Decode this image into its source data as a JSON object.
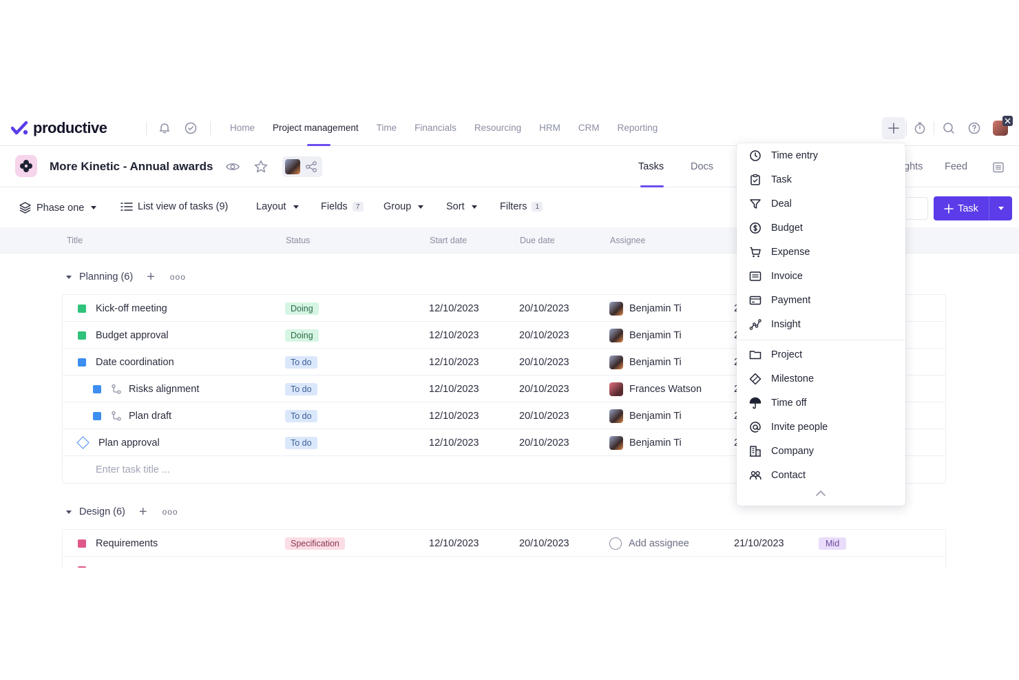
{
  "brand": {
    "name": "productive"
  },
  "nav": {
    "links": [
      {
        "label": "Home",
        "active": false
      },
      {
        "label": "Project management",
        "active": true
      },
      {
        "label": "Time",
        "active": false
      },
      {
        "label": "Financials",
        "active": false
      },
      {
        "label": "Resourcing",
        "active": false
      },
      {
        "label": "HRM",
        "active": false
      },
      {
        "label": "CRM",
        "active": false
      },
      {
        "label": "Reporting",
        "active": false
      }
    ],
    "icons": [
      "bell-icon",
      "check-circle-icon",
      "plus-icon",
      "timer-icon",
      "search-icon",
      "help-icon"
    ]
  },
  "project": {
    "title": "More Kinetic - Annual awards",
    "tabs": [
      {
        "label": "Tasks",
        "active": true
      },
      {
        "label": "Docs",
        "active": false
      },
      {
        "label": "ghts",
        "active": false
      },
      {
        "label": "Feed",
        "active": false
      }
    ]
  },
  "toolbar": {
    "phase": "Phase one",
    "view": "List view of tasks (9)",
    "layout": "Layout",
    "fields": "Fields",
    "fields_count": "7",
    "group": "Group",
    "sort": "Sort",
    "filters": "Filters",
    "filters_count": "1",
    "new_task": "Task"
  },
  "columns": [
    "Title",
    "Status",
    "Start date",
    "Due date",
    "Assignee"
  ],
  "groups": [
    {
      "name": "Planning (6)",
      "rows": [
        {
          "title": "Kick-off meeting",
          "status": "Doing",
          "start": "12/10/2023",
          "due": "20/10/2023",
          "assignee": "Benjamin Ti",
          "extra": "2"
        },
        {
          "title": "Budget approval",
          "status": "Doing",
          "start": "12/10/2023",
          "due": "20/10/2023",
          "assignee": "Benjamin Ti",
          "extra": "2"
        },
        {
          "title": "Date coordination",
          "status": "To do",
          "start": "12/10/2023",
          "due": "20/10/2023",
          "assignee": "Benjamin Ti",
          "extra": "2"
        },
        {
          "title": "Risks alignment",
          "status": "To do",
          "start": "12/10/2023",
          "due": "20/10/2023",
          "assignee": "Frances Watson",
          "extra": "2"
        },
        {
          "title": "Plan draft",
          "status": "To do",
          "start": "12/10/2023",
          "due": "20/10/2023",
          "assignee": "Benjamin Ti",
          "extra": "2"
        },
        {
          "title": "Plan approval",
          "status": "To do",
          "start": "12/10/2023",
          "due": "20/10/2023",
          "assignee": "Benjamin Ti",
          "extra": "2"
        }
      ],
      "new_task_placeholder": "Enter task title ..."
    },
    {
      "name": "Design (6)",
      "rows": [
        {
          "title": "Requirements",
          "status": "Specification",
          "start": "12/10/2023",
          "due": "20/10/2023",
          "assignee": "Add assignee",
          "deadline": "21/10/2023",
          "priority": "Mid"
        }
      ]
    }
  ],
  "menu": {
    "items": [
      {
        "label": "Time entry",
        "icon": "clock-icon"
      },
      {
        "label": "Task",
        "icon": "task-icon"
      },
      {
        "label": "Deal",
        "icon": "funnel-icon"
      },
      {
        "label": "Budget",
        "icon": "dollar-icon"
      },
      {
        "label": "Expense",
        "icon": "cart-icon"
      },
      {
        "label": "Invoice",
        "icon": "invoice-icon"
      },
      {
        "label": "Payment",
        "icon": "card-icon"
      },
      {
        "label": "Insight",
        "icon": "chart-line-icon"
      },
      {
        "label": "Project",
        "icon": "folder-icon"
      },
      {
        "label": "Milestone",
        "icon": "diamond-icon"
      },
      {
        "label": "Time off",
        "icon": "umbrella-icon"
      },
      {
        "label": "Invite people",
        "icon": "at-icon"
      },
      {
        "label": "Company",
        "icon": "building-icon"
      },
      {
        "label": "Contact",
        "icon": "people-icon"
      }
    ]
  },
  "colors": {
    "accent": "#5b3ce8",
    "doing": "#2fc27a",
    "todo": "#3d8ef0",
    "spec": "#e0588a"
  }
}
